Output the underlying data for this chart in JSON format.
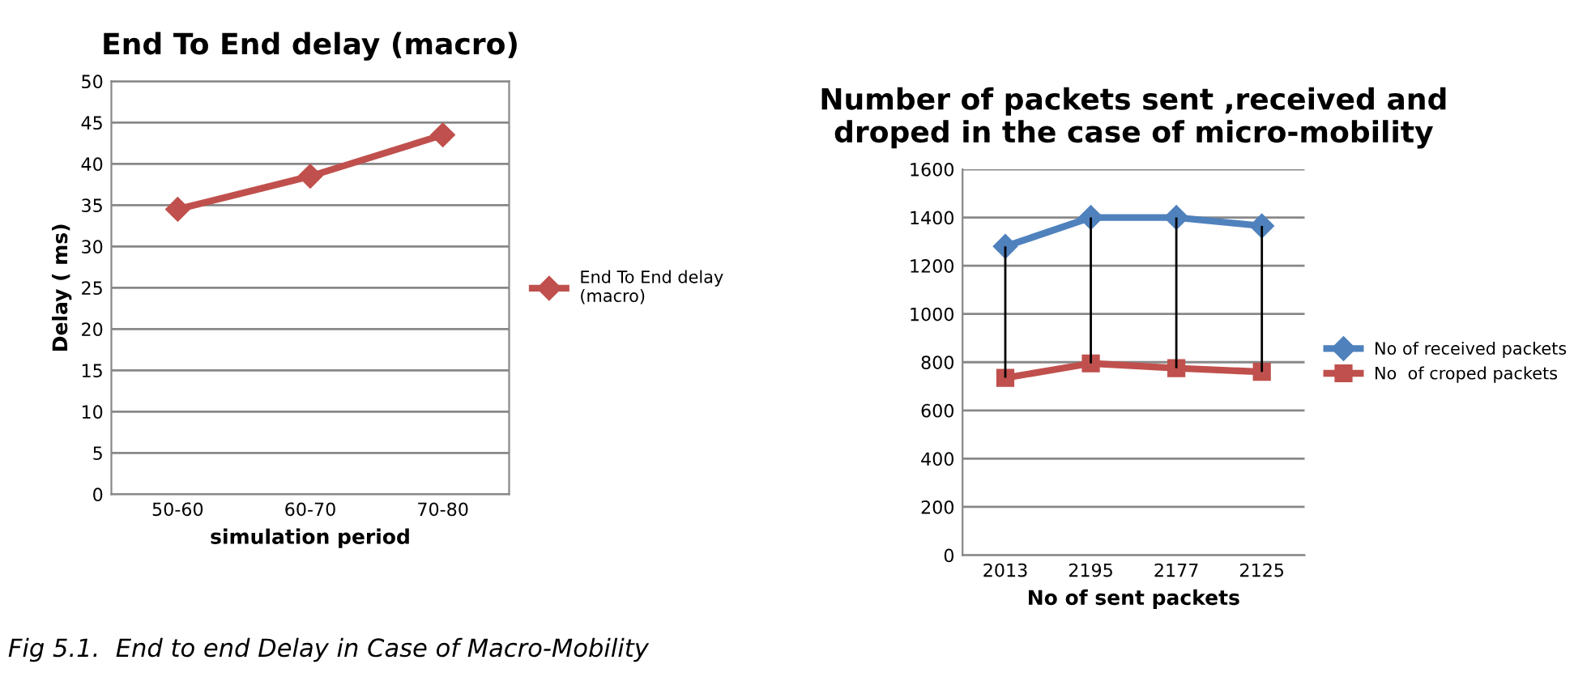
{
  "chart_data": [
    {
      "type": "line",
      "title": "End To End delay (macro)",
      "xlabel": "simulation period",
      "ylabel": "Delay ( ms)",
      "categories": [
        "50-60",
        "60-70",
        "70-80"
      ],
      "series": [
        {
          "name": "End To End delay\n(macro)",
          "color": "#c0504d",
          "values": [
            34.5,
            38.5,
            43.5
          ]
        }
      ],
      "ylim": [
        0,
        50
      ],
      "yticks": [
        0,
        5,
        10,
        15,
        20,
        25,
        30,
        35,
        40,
        45,
        50
      ],
      "grid": "y",
      "legend": "right",
      "marker": "diamond",
      "line_style": "solid",
      "annotations": [
        "Fig 5.1.  End to end Delay in Case of Macro-Mobility"
      ]
    },
    {
      "type": "line",
      "title": "Number of packets sent ,received and\ndroped in the case of micro-mobility",
      "xlabel": "No of sent packets",
      "categories": [
        "2013",
        "2195",
        "2177",
        "2125"
      ],
      "series": [
        {
          "name": "No of received packets",
          "color": "#4f81bd",
          "values": [
            1280,
            1400,
            1400,
            1365
          ],
          "marker": "diamond"
        },
        {
          "name": "No  of croped packets",
          "color": "#c0504d",
          "values": [
            735,
            795,
            775,
            760
          ],
          "marker": "square",
          "errors": [
            [
              735,
              1280
            ],
            [
              795,
              1400
            ],
            [
              775,
              1400
            ],
            [
              760,
              1365
            ]
          ]
        }
      ],
      "ylim": [
        0,
        1600
      ],
      "yticks": [
        0,
        200,
        400,
        600,
        800,
        1000,
        1200,
        1400,
        1600
      ],
      "grid": "y",
      "legend": "right",
      "line_style": "solid"
    }
  ]
}
